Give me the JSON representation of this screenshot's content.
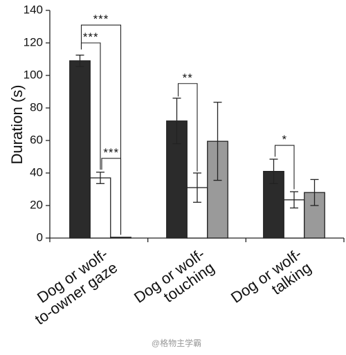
{
  "chart_data": {
    "type": "bar",
    "ylabel": "Duration (s)",
    "categories": [
      "Dog or wolf-\nto-owner gaze",
      "Dog or wolf-\ntouching",
      "Dog or wolf-\ntalking"
    ],
    "series": [
      {
        "color": "#2b2b2b",
        "values": [
          109,
          72,
          41
        ],
        "errors": [
          3.5,
          14,
          7.5
        ]
      },
      {
        "color": "#ffffff",
        "values": [
          37,
          31,
          23.5
        ],
        "errors": [
          3.5,
          9,
          5
        ]
      },
      {
        "color": "#9a9a9a",
        "values": [
          0.5,
          59.5,
          28
        ],
        "errors": [
          0,
          24,
          8
        ]
      }
    ],
    "ylim": [
      0,
      140
    ],
    "yticks": [
      0,
      20,
      40,
      60,
      80,
      100,
      120,
      140
    ],
    "annotations": [
      "***",
      "***",
      "***",
      "**",
      "*"
    ],
    "watermark": "@格物主学霸"
  }
}
